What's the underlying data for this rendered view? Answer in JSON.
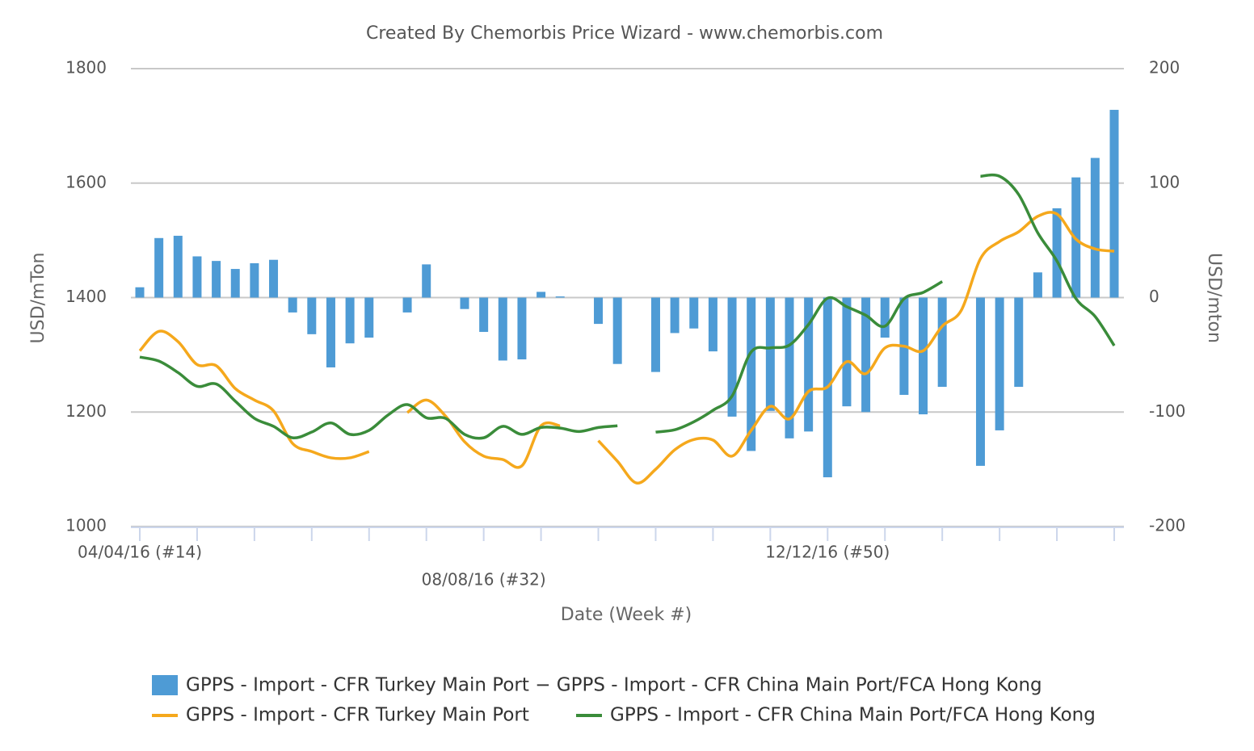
{
  "chart_data": {
    "type": "bar-line",
    "title": "Created By Chemorbis Price Wizard - www.chemorbis.com",
    "x_label": "Date (Week #)",
    "y_label": "USD/mTon",
    "y2_label": "USD/mton",
    "categories": [
      "04/04/16 (#14)",
      null,
      null,
      null,
      null,
      null,
      null,
      null,
      null,
      null,
      null,
      null,
      null,
      null,
      null,
      null,
      null,
      null,
      "08/08/16 (#32)",
      null,
      null,
      null,
      null,
      null,
      null,
      null,
      null,
      null,
      null,
      null,
      null,
      null,
      null,
      null,
      null,
      null,
      "12/12/16 (#50)",
      null,
      null,
      null,
      null,
      null,
      null,
      null,
      null,
      null,
      null,
      null,
      null,
      null,
      null,
      null
    ],
    "ylim": [
      1000,
      1800
    ],
    "yticks": [
      1000,
      1200,
      1400,
      1600,
      1800
    ],
    "y2lim": [
      -200,
      200
    ],
    "y2ticks": [
      -200,
      -100,
      0,
      100,
      200
    ],
    "grid": true,
    "series": [
      {
        "name": "GPPS - Import - CFR Turkey Main Port − GPPS - Import - CFR China Main Port/FCA Hong Kong",
        "type": "bar",
        "axis": "y2",
        "color": "#4e9bd5",
        "values": [
          9,
          52,
          54,
          36,
          32,
          25,
          30,
          33,
          -13,
          -32,
          -61,
          -40,
          -35,
          null,
          -13,
          29,
          null,
          -10,
          -30,
          -55,
          -54,
          5,
          1,
          null,
          -23,
          -58,
          null,
          -65,
          -31,
          -27,
          -47,
          -104,
          -134,
          -99,
          -123,
          -117,
          -157,
          -95,
          -100,
          -35,
          -85,
          -102,
          -78,
          null,
          -147,
          -116,
          -78,
          22,
          78,
          105,
          122,
          164
        ]
      },
      {
        "name": "GPPS - Import - CFR Turkey Main Port",
        "type": "line",
        "color": "#f5a81c",
        "values": [
          1307,
          1341,
          1323,
          1283,
          1281,
          1241,
          1221,
          1202,
          1145,
          1131,
          1120,
          1120,
          1131,
          null,
          1199,
          1221,
          1193,
          1148,
          1123,
          1117,
          1106,
          1176,
          1176,
          null,
          1150,
          1114,
          1076,
          1100,
          1134,
          1152,
          1151,
          1123,
          1168,
          1210,
          1188,
          1236,
          1244,
          1288,
          1267,
          1312,
          1315,
          1307,
          1350,
          1378,
          1468,
          1498,
          1515,
          1542,
          1546,
          1502,
          1485,
          1481
        ]
      },
      {
        "name": "GPPS - Import - CFR China Main Port/FCA Hong Kong",
        "type": "line",
        "color": "#3a8c3a",
        "values": [
          1296,
          1289,
          1269,
          1245,
          1249,
          1219,
          1189,
          1175,
          1155,
          1165,
          1181,
          1161,
          1168,
          1195,
          1213,
          1190,
          1189,
          1161,
          1155,
          1175,
          1161,
          1173,
          1172,
          1166,
          1173,
          1176,
          null,
          1165,
          1169,
          1183,
          1203,
          1228,
          1305,
          1312,
          1317,
          1353,
          1399,
          1384,
          1369,
          1350,
          1398,
          1409,
          1428,
          null,
          1612,
          1612,
          1580,
          1513,
          1464,
          1398,
          1367,
          1316
        ]
      }
    ]
  }
}
